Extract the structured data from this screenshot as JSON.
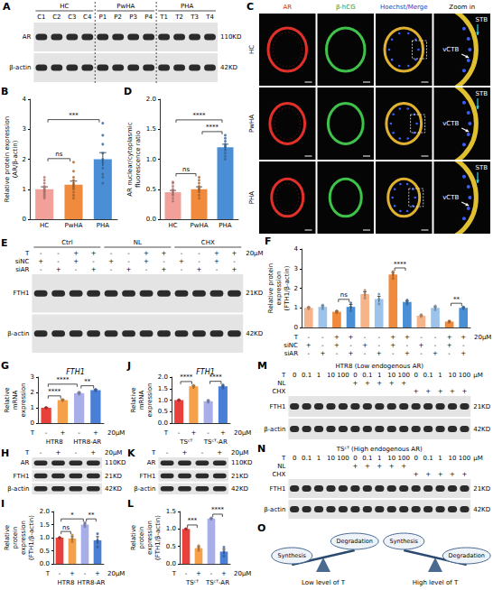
{
  "chart_data": [
    {
      "panel": "B",
      "type": "bar",
      "ylabel": "Relative protein expression (AR/β-actin)",
      "categories": [
        "HC",
        "PwHA",
        "PHA"
      ],
      "values": [
        1.0,
        1.15,
        2.0
      ],
      "errors": [
        0.08,
        0.12,
        0.22
      ],
      "points": [
        [
          0.7,
          0.75,
          0.8,
          0.85,
          0.9,
          0.95,
          1.0,
          1.05,
          1.1,
          1.2,
          1.3,
          1.4
        ],
        [
          0.7,
          0.8,
          0.9,
          1.0,
          1.05,
          1.1,
          1.15,
          1.2,
          1.3,
          1.4,
          1.6,
          1.9
        ],
        [
          1.2,
          1.4,
          1.5,
          1.7,
          1.9,
          2.0,
          2.2,
          2.5,
          2.8,
          3.2
        ]
      ],
      "colors": [
        "#f2a19a",
        "#f08a3c",
        "#4a8fd6"
      ],
      "ylim": [
        0,
        4
      ],
      "yticks": [
        0,
        1,
        2,
        3,
        4
      ],
      "grid": false,
      "annotations": [
        {
          "from": 0,
          "to": 1,
          "text": "ns"
        },
        {
          "from": 0,
          "to": 2,
          "text": "***"
        }
      ]
    },
    {
      "panel": "D",
      "type": "bar",
      "ylabel": "AR nuclear/cytoplasmic fluorescence ratio",
      "categories": [
        "HC",
        "PwHA",
        "PHA"
      ],
      "values": [
        0.45,
        0.5,
        1.2
      ],
      "errors": [
        0.03,
        0.04,
        0.05
      ],
      "points": [
        [
          0.3,
          0.35,
          0.4,
          0.42,
          0.45,
          0.48,
          0.5,
          0.55,
          0.6,
          0.62
        ],
        [
          0.35,
          0.4,
          0.45,
          0.48,
          0.5,
          0.52,
          0.55,
          0.6,
          0.65,
          0.7
        ],
        [
          1.0,
          1.05,
          1.1,
          1.15,
          1.2,
          1.22,
          1.25,
          1.3,
          1.35,
          1.4
        ]
      ],
      "colors": [
        "#f2a19a",
        "#f08a3c",
        "#4a8fd6"
      ],
      "ylim": [
        0,
        2
      ],
      "yticks": [
        {
          "value": 0,
          "label": "0.0"
        },
        {
          "value": 0.5,
          "label": "0.5"
        },
        {
          "value": 1,
          "label": "1.0"
        },
        {
          "value": 1.5,
          "label": "1.5"
        },
        {
          "value": 2,
          "label": "2.0"
        }
      ],
      "grid": false,
      "annotations": [
        {
          "from": 0,
          "to": 1,
          "text": "ns"
        },
        {
          "from": 1,
          "to": 2,
          "text": "****"
        },
        {
          "from": 0,
          "to": 2,
          "text": "****"
        }
      ]
    },
    {
      "panel": "F",
      "type": "bar",
      "ylabel": "Relative protein expression (FTH1/β-actin)",
      "categories": [
        null,
        null,
        null,
        null,
        null,
        null,
        null,
        null,
        null,
        null,
        null,
        null
      ],
      "values": [
        1.0,
        1.05,
        0.8,
        1.05,
        1.7,
        1.45,
        2.7,
        1.3,
        0.6,
        1.0,
        0.3,
        1.0
      ],
      "errors": [
        0.03,
        0.06,
        0.03,
        0.12,
        0.12,
        0.14,
        0.1,
        0.06,
        0.03,
        0.06,
        0.02,
        0.03
      ],
      "points": [
        [
          0.95,
          1.0,
          1.05
        ],
        [
          0.95,
          1.05,
          1.15
        ],
        [
          0.75,
          0.8,
          0.85
        ],
        [
          0.85,
          1.05,
          1.25
        ],
        [
          1.5,
          1.7,
          1.9
        ],
        [
          1.2,
          1.45,
          1.7
        ],
        [
          2.5,
          2.7,
          2.85
        ],
        [
          1.2,
          1.3,
          1.4
        ],
        [
          0.55,
          0.6,
          0.65
        ],
        [
          0.9,
          1.0,
          1.1
        ],
        [
          0.27,
          0.3,
          0.33
        ],
        [
          0.95,
          1.0,
          1.05
        ]
      ],
      "colors": [
        "#f6b48a",
        "#9cc3ec",
        "#f08a3c",
        "#4a8fd6",
        "#f6b48a",
        "#9cc3ec",
        "#f08a3c",
        "#4a8fd6",
        "#f6b48a",
        "#9cc3ec",
        "#f08a3c",
        "#4a8fd6"
      ],
      "ylim": [
        0,
        4
      ],
      "yticks": [
        0,
        1,
        2,
        3,
        4
      ],
      "grid": false,
      "x_rows": [
        {
          "label": "T",
          "values": [
            "-",
            "-",
            "+",
            "+",
            "-",
            "-",
            "+",
            "+",
            "-",
            "-",
            "+",
            "+"
          ],
          "suffix": "20μM"
        },
        {
          "label": "siNC",
          "values": [
            "+",
            "-",
            "+",
            "-",
            "+",
            "-",
            "+",
            "-",
            "+",
            "-",
            "+",
            "-"
          ]
        },
        {
          "label": "siAR",
          "values": [
            "-",
            "+",
            "-",
            "+",
            "-",
            "+",
            "-",
            "+",
            "-",
            "+",
            "-",
            "+"
          ]
        }
      ],
      "annotations": [
        {
          "from": 2,
          "to": 3,
          "text": "ns"
        },
        {
          "from": 6,
          "to": 7,
          "text": "****"
        },
        {
          "from": 10,
          "to": 11,
          "text": "**"
        }
      ]
    },
    {
      "panel": "G",
      "type": "bar",
      "title": "FTH1",
      "ylabel": "Relative mRNA expression",
      "categories": [
        null,
        null,
        null,
        null
      ],
      "values": [
        1.0,
        1.5,
        1.95,
        2.15
      ],
      "errors": [
        0.02,
        0.03,
        0.04,
        0.04
      ],
      "points": [
        [
          0.98,
          1.0,
          1.02
        ],
        [
          1.46,
          1.5,
          1.54
        ],
        [
          1.88,
          1.95,
          2.02
        ],
        [
          2.1,
          2.15,
          2.2
        ]
      ],
      "colors": [
        "#e8413c",
        "#f5a04a",
        "#a7aee8",
        "#4a7fd6"
      ],
      "ylim": [
        0,
        3
      ],
      "yticks": [
        0,
        1,
        2,
        3
      ],
      "grid": false,
      "x_rows": [
        {
          "label": "T",
          "values": [
            "-",
            "+",
            "-",
            "+"
          ],
          "suffix": "20μM"
        }
      ],
      "x_groups": [
        {
          "label": "HTR8",
          "from": 0,
          "to": 1
        },
        {
          "label": "HTR8-AR",
          "from": 2,
          "to": 3
        }
      ],
      "annotations": [
        {
          "from": 2,
          "to": 3,
          "text": "**"
        },
        {
          "from": 0,
          "to": 1,
          "text": "****"
        },
        {
          "from": 0,
          "to": 2,
          "text": "****"
        }
      ]
    },
    {
      "panel": "J",
      "type": "bar",
      "title": "FTH1",
      "ylabel": "Relative mRNA expression",
      "categories": [
        null,
        null,
        null,
        null
      ],
      "values": [
        1.0,
        1.6,
        0.95,
        1.6
      ],
      "errors": [
        0.01,
        0.03,
        0.03,
        0.04
      ],
      "points": [
        [
          0.98,
          1.0,
          1.02
        ],
        [
          1.55,
          1.6,
          1.65
        ],
        [
          0.9,
          0.95,
          1.0
        ],
        [
          1.52,
          1.6,
          1.66
        ]
      ],
      "colors": [
        "#e8413c",
        "#f5a04a",
        "#a7aee8",
        "#4a7fd6"
      ],
      "ylim": [
        0,
        2
      ],
      "yticks": [
        {
          "value": 0,
          "label": "0.0"
        },
        {
          "value": 0.5,
          "label": "0.5"
        },
        {
          "value": 1,
          "label": "1.0"
        },
        {
          "value": 1.5,
          "label": "1.5"
        },
        {
          "value": 2,
          "label": "2.0"
        }
      ],
      "grid": false,
      "x_rows": [
        {
          "label": "T",
          "values": [
            "-",
            "+",
            "-",
            "+"
          ],
          "suffix": "20μM"
        }
      ],
      "x_groups": [
        {
          "label": "TSᶜᵀ",
          "from": 0,
          "to": 1
        },
        {
          "label": "TSᶜᵀ-AR",
          "from": 2,
          "to": 3
        }
      ],
      "annotations": [
        {
          "from": 0,
          "to": 1,
          "text": "****"
        },
        {
          "from": 2,
          "to": 3,
          "text": "****"
        }
      ]
    },
    {
      "panel": "I",
      "type": "bar",
      "ylabel": "Relative protein expression (FTH1/β-actin)",
      "categories": [
        null,
        null,
        null,
        null
      ],
      "values": [
        1.0,
        0.97,
        1.5,
        0.9
      ],
      "errors": [
        0.01,
        0.07,
        0.05,
        0.14
      ],
      "points": [
        [
          0.99,
          1.0,
          1.01
        ],
        [
          0.85,
          0.95,
          1.1
        ],
        [
          1.42,
          1.5,
          1.58
        ],
        [
          0.65,
          0.9,
          1.15
        ]
      ],
      "colors": [
        "#e8413c",
        "#f5a04a",
        "#a7aee8",
        "#4a7fd6"
      ],
      "ylim": [
        0,
        2
      ],
      "yticks": [
        {
          "value": 0,
          "label": "0.0"
        },
        {
          "value": 0.5,
          "label": "0.5"
        },
        {
          "value": 1,
          "label": "1.0"
        },
        {
          "value": 1.5,
          "label": "1.5"
        },
        {
          "value": 2,
          "label": "2.0"
        }
      ],
      "grid": false,
      "x_rows": [
        {
          "label": "T",
          "values": [
            "-",
            "+",
            "-",
            "+"
          ],
          "suffix": "20μM"
        }
      ],
      "x_groups": [
        {
          "label": "HTR8",
          "from": 0,
          "to": 1
        },
        {
          "label": "HTR8-AR",
          "from": 2,
          "to": 3
        }
      ],
      "annotations": [
        {
          "from": 0,
          "to": 1,
          "text": "ns"
        },
        {
          "from": 2,
          "to": 3,
          "text": "**"
        },
        {
          "from": 0,
          "to": 2,
          "text": "*"
        }
      ]
    },
    {
      "panel": "L",
      "type": "bar",
      "ylabel": "Relative protein expression (FTH1/β-actin)",
      "categories": [
        null,
        null,
        null,
        null
      ],
      "values": [
        1.0,
        0.45,
        1.3,
        0.35
      ],
      "errors": [
        0.01,
        0.04,
        0.01,
        0.07
      ],
      "points": [
        [
          0.99,
          1.0,
          1.01
        ],
        [
          0.38,
          0.45,
          0.52
        ],
        [
          1.28,
          1.3,
          1.32
        ],
        [
          0.22,
          0.35,
          0.48
        ]
      ],
      "colors": [
        "#e8413c",
        "#f5a04a",
        "#a7aee8",
        "#4a7fd6"
      ],
      "ylim": [
        0,
        1.5
      ],
      "yticks": [
        {
          "value": 0,
          "label": "0.0"
        },
        {
          "value": 0.5,
          "label": "0.5"
        },
        {
          "value": 1,
          "label": "1.0"
        },
        {
          "value": 1.5,
          "label": "1.5"
        }
      ],
      "grid": false,
      "x_rows": [
        {
          "label": "T",
          "values": [
            "-",
            "+",
            "-",
            "+"
          ],
          "suffix": "20μM"
        }
      ],
      "x_groups": [
        {
          "label": "TSᶜᵀ",
          "from": 0,
          "to": 1
        },
        {
          "label": "TSᶜᵀ-AR",
          "from": 2,
          "to": 3
        }
      ],
      "annotations": [
        {
          "from": 0,
          "to": 1,
          "text": "***"
        },
        {
          "from": 2,
          "to": 3,
          "text": "****"
        }
      ]
    }
  ],
  "blots": [
    {
      "panel": "A",
      "groups": [
        {
          "label": "HC",
          "lanes": 4
        },
        {
          "label": "PwHA",
          "lanes": 4
        },
        {
          "label": "PHA",
          "lanes": 4
        }
      ],
      "lane_labels": [
        "C1",
        "C2",
        "C3",
        "C4",
        "P1",
        "P2",
        "P3",
        "P4",
        "T1",
        "T2",
        "T3",
        "T4"
      ],
      "bands": [
        {
          "label": "AR",
          "size": "110KD"
        },
        {
          "label": "β-actin",
          "size": "42KD"
        }
      ]
    },
    {
      "panel": "E",
      "groups": [
        {
          "label": "Ctrl",
          "lanes": 4
        },
        {
          "label": "NL",
          "lanes": 4
        },
        {
          "label": "CHX",
          "lanes": 4
        }
      ],
      "rows": [
        {
          "label": "T",
          "values": [
            "-",
            "-",
            "+",
            "+",
            "-",
            "-",
            "+",
            "+",
            "-",
            "-",
            "+",
            "+"
          ],
          "suffix": "20μM"
        },
        {
          "label": "siNC",
          "values": [
            "+",
            "-",
            "+",
            "-",
            "+",
            "-",
            "+",
            "-",
            "+",
            "-",
            "+",
            "-"
          ]
        },
        {
          "label": "siAR",
          "values": [
            "-",
            "+",
            "-",
            "+",
            "-",
            "+",
            "-",
            "+",
            "-",
            "+",
            "-",
            "+"
          ]
        }
      ],
      "bands": [
        {
          "label": "FTH1",
          "size": "21KD"
        },
        {
          "label": "β-actin",
          "size": "42KD"
        }
      ]
    },
    {
      "panel": "H",
      "rows": [
        {
          "label": "T",
          "values": [
            "-",
            "+",
            "-",
            "+"
          ],
          "suffix": "20μM"
        }
      ],
      "bands": [
        {
          "label": "AR",
          "size": "110KD"
        },
        {
          "label": "FTH1",
          "size": "21KD"
        },
        {
          "label": "β-actin",
          "size": "42KD"
        }
      ]
    },
    {
      "panel": "K",
      "rows": [
        {
          "label": "T",
          "values": [
            "-",
            "+",
            "-",
            "+"
          ],
          "suffix": "20μM"
        }
      ],
      "bands": [
        {
          "label": "AR",
          "size": "110KD"
        },
        {
          "label": "FTH1",
          "size": "21KD"
        },
        {
          "label": "β-actin",
          "size": "42KD"
        }
      ]
    },
    {
      "panel": "M",
      "title": "HTR8 (Low endogenous AR)",
      "rows": [
        {
          "label": "T",
          "values": [
            0,
            0.1,
            1,
            10,
            100,
            0,
            0.1,
            1,
            10,
            100,
            0,
            0.1,
            1,
            10,
            100
          ],
          "suffix": "μM"
        },
        {
          "label": "NL",
          "values": [
            null,
            null,
            null,
            null,
            null,
            "+",
            "+",
            "+",
            "+",
            "+",
            null,
            null,
            null,
            null,
            null
          ]
        },
        {
          "label": "CHX",
          "values": [
            null,
            null,
            null,
            null,
            null,
            null,
            null,
            null,
            null,
            null,
            "+",
            "+",
            "+",
            "+",
            "+"
          ]
        }
      ],
      "bands": [
        {
          "label": "FTH1",
          "size": "21KD"
        },
        {
          "label": "β-actin",
          "size": "42KD"
        }
      ]
    },
    {
      "panel": "N",
      "title": "TSᶜᵀ (High endogenous AR)",
      "rows": [
        {
          "label": "T",
          "values": [
            0,
            0.1,
            1,
            10,
            100,
            0,
            0.1,
            1,
            10,
            100,
            0,
            0.1,
            1,
            10,
            100
          ],
          "suffix": "μM"
        },
        {
          "label": "NL",
          "values": [
            null,
            null,
            null,
            null,
            null,
            "+",
            "+",
            "+",
            "+",
            "+",
            null,
            null,
            null,
            null,
            null
          ]
        },
        {
          "label": "CHX",
          "values": [
            null,
            null,
            null,
            null,
            null,
            null,
            null,
            null,
            null,
            null,
            "+",
            "+",
            "+",
            "+",
            "+"
          ]
        }
      ],
      "bands": [
        {
          "label": "FTH1",
          "size": "21KD"
        },
        {
          "label": "β-actin",
          "size": "42KD"
        }
      ]
    }
  ],
  "microscopy": {
    "panel": "C",
    "columns": [
      "AR",
      "β-hCG",
      "Hoechst/Merge",
      "Zoom in"
    ],
    "rows": [
      "HC",
      "PwHA",
      "PHA"
    ],
    "zoom_labels": [
      "STB",
      "vCTB"
    ]
  },
  "model": {
    "panel": "O",
    "panels": [
      {
        "left": "Synthesis",
        "right": "Degradation",
        "caption": "Low level of T"
      },
      {
        "left": "Synthesis",
        "right": "Degradation",
        "caption": "High level of T"
      }
    ]
  }
}
